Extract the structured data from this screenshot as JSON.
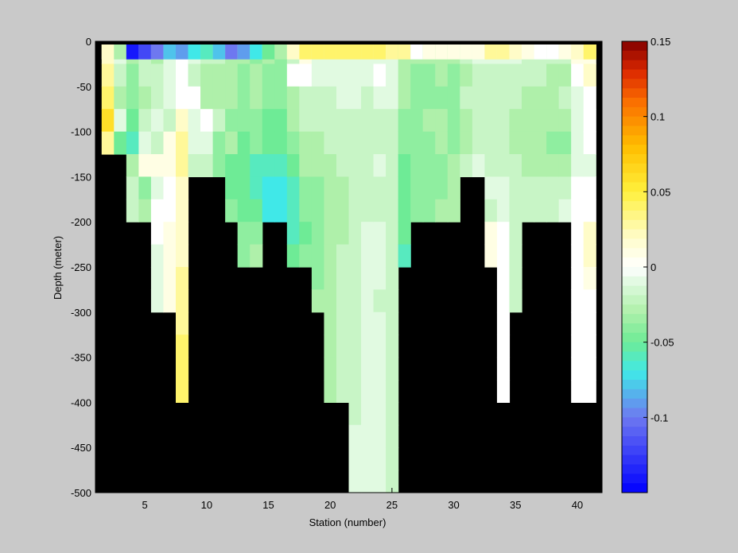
{
  "chart_data": {
    "type": "heatmap",
    "title": "",
    "xlabel": "Station (number)",
    "ylabel": "Depth (meter)",
    "xlim": [
      1,
      42
    ],
    "ylim": [
      -500,
      0
    ],
    "x_ticks": [
      5,
      10,
      15,
      20,
      25,
      30,
      35,
      40
    ],
    "y_ticks": [
      0,
      -50,
      -100,
      -150,
      -200,
      -250,
      -300,
      -350,
      -400,
      -450,
      -500
    ],
    "x_tick_labels": [
      "5",
      "10",
      "15",
      "20",
      "25",
      "30",
      "35",
      "40"
    ],
    "y_tick_labels": [
      "0",
      "-50",
      "-100",
      "-150",
      "-200",
      "-250",
      "-300",
      "-350",
      "-400",
      "-450",
      "-500"
    ],
    "colorbar": {
      "clim": [
        -0.15,
        0.15
      ],
      "ticks": [
        0.15,
        0.1,
        0.05,
        0,
        -0.05,
        -0.1
      ],
      "tick_labels": [
        "0.15",
        "0.1",
        "0.05",
        "0",
        "-0.05",
        "-0.1"
      ],
      "colormap": "jet-white-center",
      "levels": 48
    },
    "no_data_color": "#000000",
    "stations": [
      2,
      3,
      4,
      5,
      6,
      7,
      8,
      9,
      10,
      11,
      12,
      13,
      14,
      15,
      16,
      17,
      18,
      19,
      20,
      21,
      22,
      23,
      24,
      25,
      26,
      27,
      28,
      29,
      30,
      31,
      32,
      33,
      34,
      35,
      36,
      37,
      38,
      39,
      40,
      41
    ],
    "bottom_depth": [
      -125,
      -125,
      -200,
      -200,
      -300,
      -300,
      -400,
      -150,
      -150,
      -150,
      -200,
      -250,
      -250,
      -200,
      -200,
      -250,
      -250,
      -300,
      -400,
      -400,
      -500,
      -500,
      -500,
      -500,
      -250,
      -200,
      -200,
      -200,
      -200,
      -150,
      -150,
      -250,
      -400,
      -300,
      -200,
      -200,
      -200,
      -200,
      -400,
      -400
    ],
    "surface_layer": {
      "depth_range": [
        0,
        -20
      ],
      "values": [
        0.02,
        -0.03,
        -0.14,
        -0.12,
        -0.1,
        -0.08,
        -0.09,
        -0.07,
        -0.06,
        -0.08,
        -0.1,
        -0.09,
        -0.07,
        -0.05,
        -0.03,
        0.02,
        0.04,
        0.04,
        0.04,
        0.04,
        0.04,
        0.04,
        0.04,
        0.03,
        0.03,
        0.0,
        0.01,
        0.01,
        0.01,
        0.01,
        0.01,
        0.03,
        0.03,
        0.02,
        0.01,
        0.0,
        0.0,
        0.01,
        0.02,
        0.04
      ]
    },
    "profiles": [
      [
        0.02,
        0.03,
        0.04,
        0.06,
        0.03
      ],
      [
        -0.01,
        -0.02,
        -0.03,
        -0.01,
        -0.05
      ],
      [
        -0.03,
        -0.04,
        -0.04,
        -0.05,
        -0.06,
        -0.03,
        -0.02,
        -0.02
      ],
      [
        -0.02,
        -0.02,
        -0.03,
        -0.02,
        -0.01,
        0.01,
        -0.04,
        -0.03
      ],
      [
        -0.03,
        -0.02,
        -0.02,
        -0.01,
        -0.02,
        0.01,
        -0.01,
        0.0,
        0.0,
        -0.01,
        -0.01,
        -0.01
      ],
      [
        -0.01,
        -0.01,
        -0.01,
        -0.02,
        0.01,
        0.01,
        0.0,
        0.0,
        0.01,
        0.01,
        0.01,
        0.01
      ],
      [
        0.0,
        0.0,
        0.0,
        0.02,
        0.03,
        0.03,
        0.02,
        0.02,
        0.02,
        0.02,
        0.03,
        0.03,
        0.03,
        0.04,
        0.04,
        0.04
      ],
      [
        -0.01,
        -0.02,
        0.0,
        -0.01,
        -0.01,
        -0.02
      ],
      [
        -0.02,
        -0.03,
        -0.03,
        0.0,
        -0.01,
        -0.02
      ],
      [
        -0.02,
        -0.03,
        -0.03,
        -0.02,
        -0.04,
        -0.04
      ],
      [
        -0.03,
        -0.03,
        -0.03,
        -0.04,
        -0.03,
        -0.05,
        -0.05,
        -0.04
      ],
      [
        -0.03,
        -0.04,
        -0.04,
        -0.04,
        -0.05,
        -0.05,
        -0.05,
        -0.05,
        -0.04,
        -0.04
      ],
      [
        -0.04,
        -0.03,
        -0.03,
        -0.04,
        -0.04,
        -0.06,
        -0.06,
        -0.05,
        -0.04,
        -0.03
      ],
      [
        -0.03,
        -0.04,
        -0.04,
        -0.05,
        -0.05,
        -0.06,
        -0.07,
        -0.07
      ],
      [
        -0.04,
        -0.04,
        -0.04,
        -0.05,
        -0.05,
        -0.06,
        -0.07,
        -0.07
      ],
      [
        -0.02,
        0.0,
        -0.03,
        -0.03,
        -0.04,
        -0.05,
        -0.06,
        -0.06,
        -0.06,
        -0.05
      ],
      [
        0.01,
        0.0,
        -0.02,
        -0.02,
        -0.03,
        -0.03,
        -0.04,
        -0.04,
        -0.05,
        -0.04
      ],
      [
        -0.01,
        -0.01,
        -0.02,
        -0.02,
        -0.03,
        -0.03,
        -0.04,
        -0.04,
        -0.04,
        -0.04,
        -0.04,
        -0.03
      ],
      [
        -0.01,
        -0.01,
        -0.02,
        -0.02,
        -0.02,
        -0.03,
        -0.03,
        -0.03,
        -0.03,
        -0.03,
        -0.03,
        -0.03,
        -0.03,
        -0.03,
        -0.03,
        -0.03
      ],
      [
        -0.01,
        -0.01,
        -0.01,
        -0.02,
        -0.02,
        -0.02,
        -0.03,
        -0.03,
        -0.03,
        -0.02,
        -0.02,
        -0.02,
        -0.02,
        -0.02,
        -0.02,
        -0.02
      ],
      [
        -0.01,
        -0.01,
        -0.01,
        -0.02,
        -0.02,
        -0.02,
        -0.02,
        -0.02,
        -0.02,
        -0.02,
        -0.02,
        -0.02,
        -0.02,
        -0.02,
        -0.02,
        -0.02,
        -0.02,
        -0.01,
        -0.01,
        -0.01
      ],
      [
        -0.01,
        -0.01,
        -0.02,
        -0.02,
        -0.02,
        -0.02,
        -0.02,
        -0.02,
        -0.01,
        -0.01,
        -0.01,
        -0.01,
        -0.01,
        -0.01,
        -0.01,
        -0.01,
        -0.01,
        -0.01,
        -0.01,
        -0.01
      ],
      [
        -0.01,
        0.0,
        -0.01,
        -0.02,
        -0.02,
        -0.01,
        -0.02,
        -0.02,
        -0.01,
        -0.01,
        -0.01,
        -0.02,
        -0.01,
        -0.01,
        -0.01,
        -0.01,
        -0.01,
        -0.01,
        -0.01,
        -0.01
      ],
      [
        -0.01,
        -0.01,
        -0.01,
        -0.02,
        -0.02,
        -0.02,
        -0.02,
        -0.02,
        -0.02,
        -0.02,
        -0.02,
        -0.02,
        -0.02,
        -0.02,
        -0.02,
        -0.02,
        -0.02,
        -0.02,
        -0.02,
        -0.02
      ],
      [
        -0.03,
        -0.03,
        -0.03,
        -0.04,
        -0.04,
        -0.05,
        -0.05,
        -0.05,
        -0.05,
        -0.06
      ],
      [
        -0.03,
        -0.04,
        -0.04,
        -0.04,
        -0.04,
        -0.04,
        -0.04,
        -0.04
      ],
      [
        -0.03,
        -0.04,
        -0.04,
        -0.03,
        -0.04,
        -0.04,
        -0.04,
        -0.04
      ],
      [
        -0.03,
        -0.03,
        -0.04,
        -0.03,
        -0.03,
        -0.04,
        -0.04,
        -0.03
      ],
      [
        -0.03,
        -0.04,
        -0.04,
        -0.04,
        -0.04,
        -0.03,
        -0.03,
        -0.03
      ],
      [
        -0.02,
        -0.03,
        -0.02,
        -0.03,
        -0.03,
        -0.02
      ],
      [
        -0.01,
        -0.02,
        -0.02,
        -0.02,
        -0.02,
        -0.01
      ],
      [
        -0.01,
        -0.02,
        -0.02,
        -0.02,
        -0.02,
        -0.02,
        -0.01,
        -0.02,
        0.01,
        0.01
      ],
      [
        -0.01,
        -0.02,
        -0.02,
        -0.02,
        -0.02,
        -0.02,
        -0.01,
        -0.01,
        0.0,
        0.0,
        0.0,
        0.0,
        0.0,
        0.0,
        0.0,
        0.0
      ],
      [
        -0.01,
        -0.02,
        -0.02,
        -0.03,
        -0.03,
        -0.02,
        -0.02,
        -0.02,
        -0.02,
        -0.02,
        -0.02,
        -0.02
      ],
      [
        -0.02,
        -0.02,
        -0.03,
        -0.03,
        -0.03,
        -0.03,
        -0.02,
        -0.02
      ],
      [
        -0.02,
        -0.02,
        -0.03,
        -0.03,
        -0.03,
        -0.03,
        -0.02,
        -0.02
      ],
      [
        -0.02,
        -0.03,
        -0.03,
        -0.03,
        -0.04,
        -0.03,
        -0.02,
        -0.02
      ],
      [
        -0.02,
        -0.03,
        -0.02,
        -0.03,
        -0.04,
        -0.03,
        -0.02,
        -0.01
      ],
      [
        0.01,
        0.0,
        -0.01,
        -0.01,
        -0.01,
        -0.01,
        0.0,
        0.0,
        0.0,
        0.0,
        0.0,
        0.0,
        0.0,
        0.0,
        0.0,
        0.0
      ],
      [
        0.01,
        0.02,
        0.0,
        0.0,
        0.0,
        -0.01,
        0.0,
        0.0,
        0.02,
        0.02,
        0.01,
        0.0,
        0.0,
        0.0,
        0.0,
        0.0
      ]
    ]
  }
}
